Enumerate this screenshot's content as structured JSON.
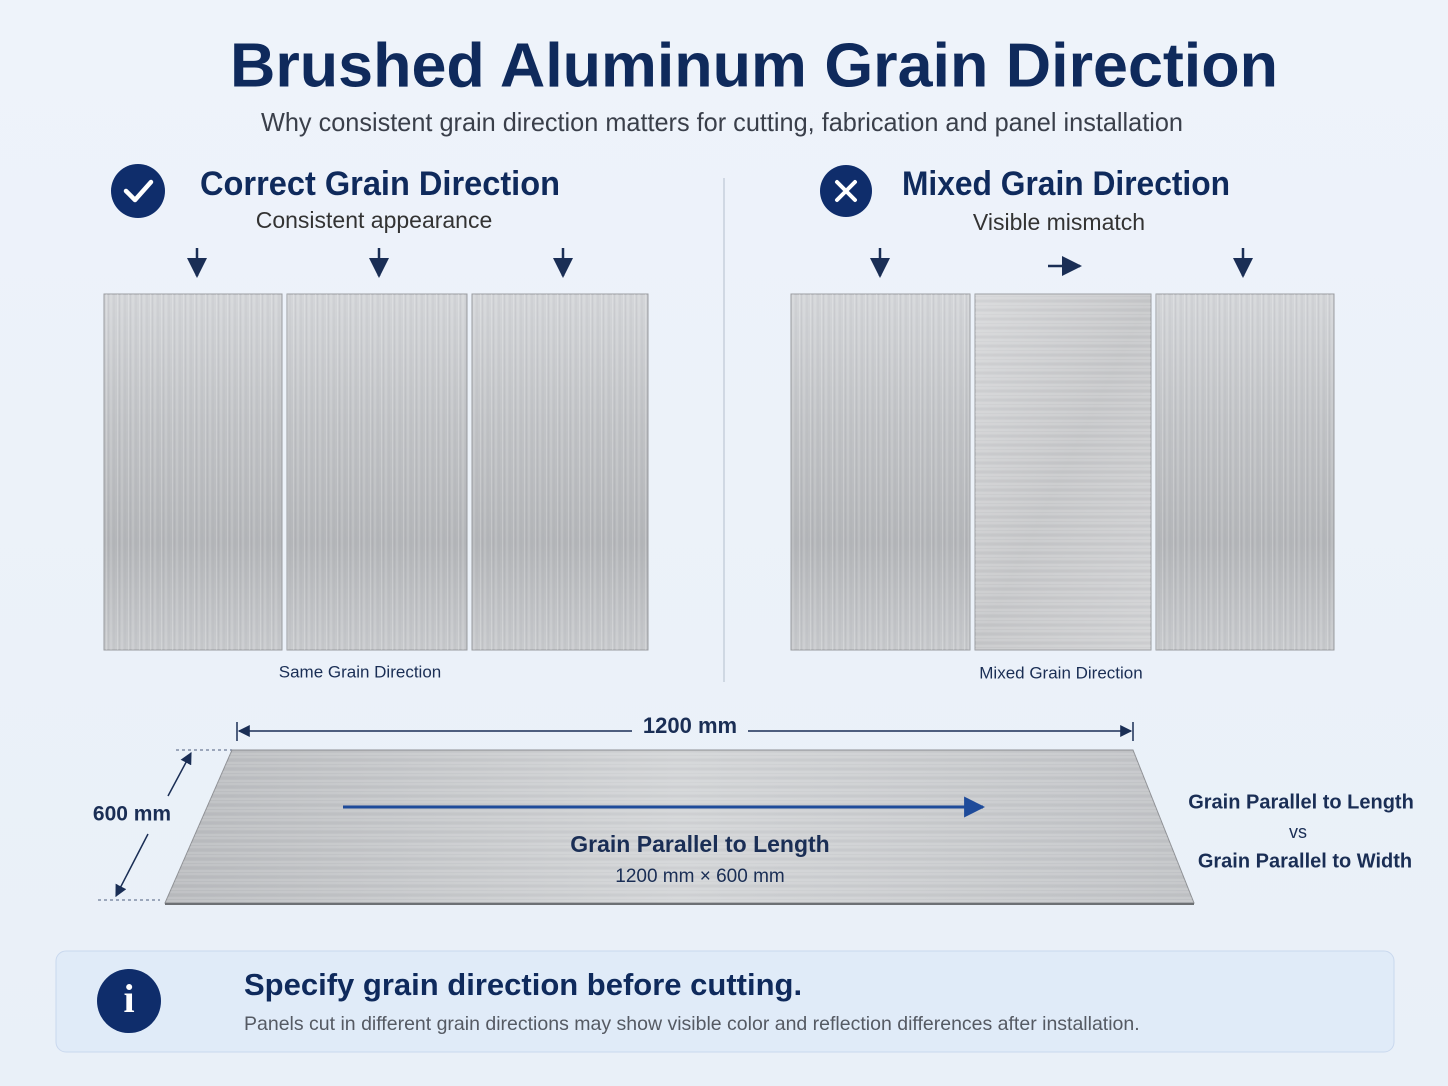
{
  "header": {
    "title": "Brushed Aluminum Grain Direction",
    "subtitle": "Why consistent grain direction matters for cutting, fabrication and panel installation"
  },
  "panels": [
    {
      "title": "Correct Grain Direction",
      "subtitle": "Consistent appearance",
      "caption": "Same Grain Direction"
    },
    {
      "title": "Mixed Grain Direction",
      "subtitle": "Visible mismatch",
      "caption": "Mixed Grain Direction"
    }
  ],
  "sheet": {
    "length_label": "1200 mm",
    "width_label": "600 mm",
    "grain_label": "Grain Parallel to Length",
    "size_label": "1200 mm × 600 mm"
  },
  "comparison": {
    "first": "Grain Parallel to Length",
    "vs": "vs",
    "second": "Grain Parallel to Width"
  },
  "note": {
    "title": "Specify grain direction before cutting.",
    "text": "Panels cut in different grain directions may show visible color and reflection differences after installation."
  }
}
